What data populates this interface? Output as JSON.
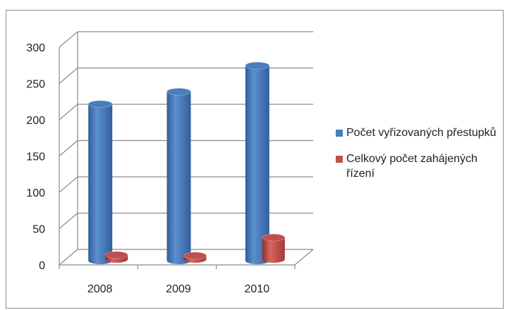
{
  "chart_data": {
    "type": "bar",
    "style": "3d-cylinder",
    "categories": [
      "2008",
      "2009",
      "2010"
    ],
    "series": [
      {
        "name": "Počet vyřizovaných přestupků",
        "color": "#4a7ebb",
        "values": [
          210,
          227,
          263
        ]
      },
      {
        "name": "Celkový počet zahájených řízení",
        "color": "#c0504d",
        "values": [
          4,
          3,
          28
        ]
      }
    ],
    "y_ticks": [
      "0",
      "50",
      "100",
      "150",
      "200",
      "250",
      "300"
    ],
    "ylim": [
      0,
      300
    ],
    "grid": true,
    "legend_position": "right"
  }
}
